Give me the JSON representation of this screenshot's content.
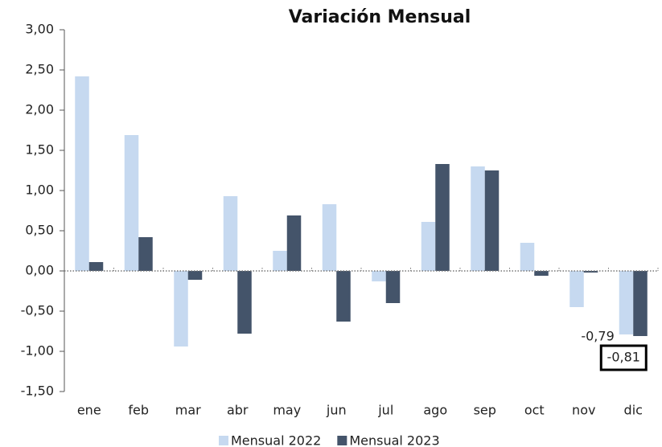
{
  "chart_data": {
    "type": "bar",
    "title": "Variación Mensual",
    "categories": [
      "ene",
      "feb",
      "mar",
      "abr",
      "may",
      "jun",
      "jul",
      "ago",
      "sep",
      "oct",
      "nov",
      "dic"
    ],
    "series": [
      {
        "name": "Mensual 2022",
        "color": "#c6d9f0",
        "values": [
          2.42,
          1.69,
          -0.94,
          0.93,
          0.25,
          0.83,
          -0.13,
          0.61,
          1.3,
          0.35,
          -0.45,
          -0.79
        ],
        "value_labels": [
          null,
          null,
          null,
          null,
          null,
          null,
          null,
          null,
          null,
          null,
          null,
          "-0,79"
        ]
      },
      {
        "name": "Mensual 2023",
        "color": "#44546a",
        "values": [
          0.11,
          0.42,
          -0.11,
          -0.78,
          0.69,
          -0.63,
          -0.4,
          1.33,
          1.25,
          -0.06,
          -0.02,
          -0.81
        ],
        "value_labels": [
          null,
          null,
          null,
          null,
          null,
          null,
          null,
          null,
          null,
          null,
          null,
          "-0,81"
        ]
      }
    ],
    "ylim": [
      -1.5,
      3
    ],
    "yticks": [
      {
        "value": -1.5,
        "label": "-1,50"
      },
      {
        "value": -1,
        "label": "-1,00"
      },
      {
        "value": -0.5,
        "label": "-0,50"
      },
      {
        "value": 0,
        "label": "0,00"
      },
      {
        "value": 0.5,
        "label": "0,50"
      },
      {
        "value": 1,
        "label": "1,00"
      },
      {
        "value": 1.5,
        "label": "1,50"
      },
      {
        "value": 2,
        "label": "2,00"
      },
      {
        "value": 2.5,
        "label": "2,50"
      },
      {
        "value": 3,
        "label": "3,00"
      }
    ],
    "legend": "bottom"
  }
}
